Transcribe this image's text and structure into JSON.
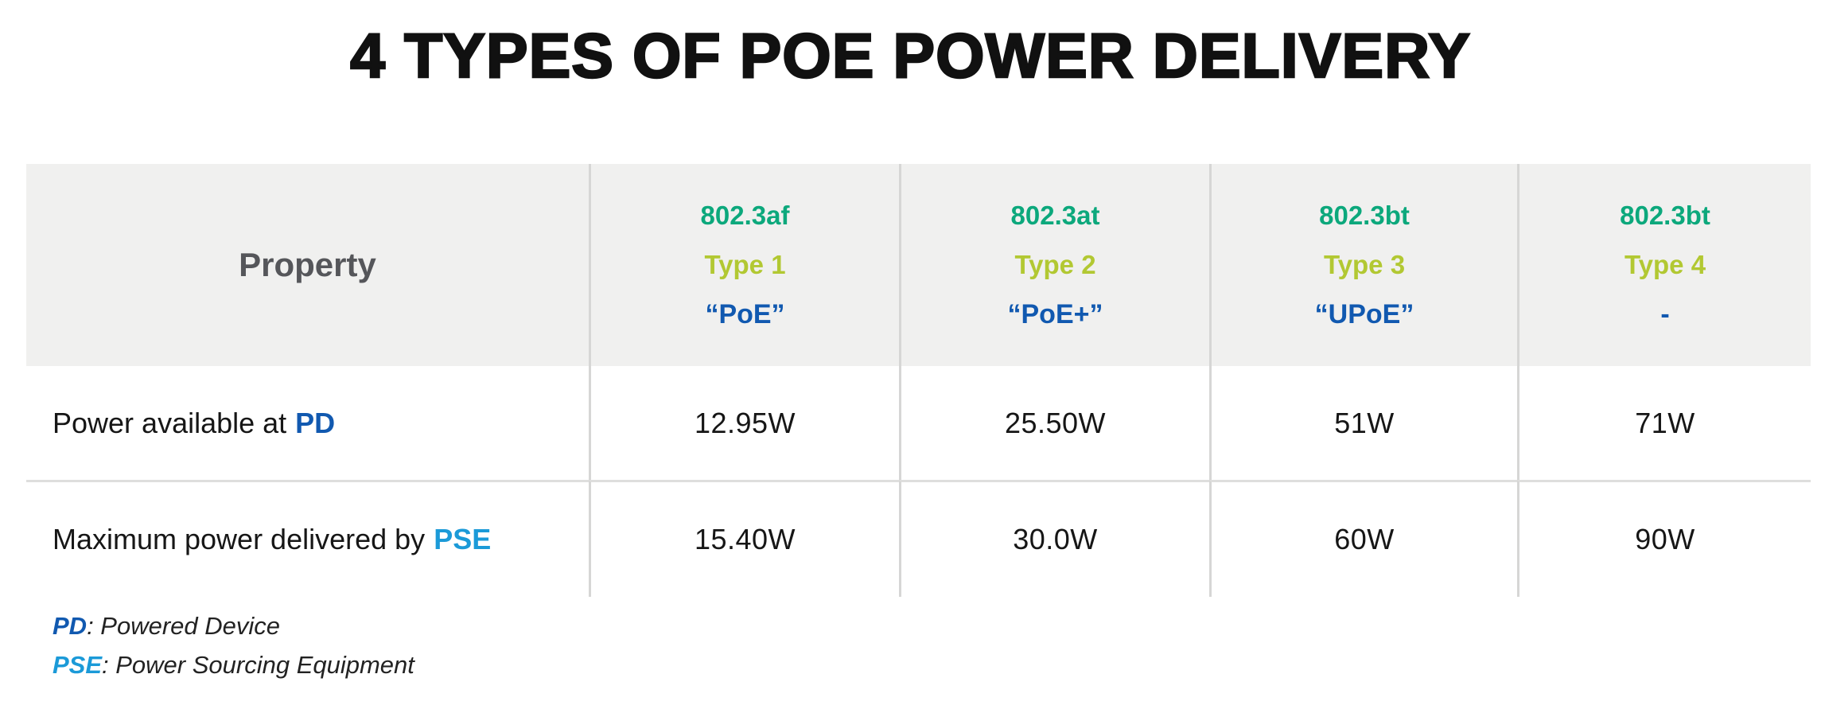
{
  "title": "4 TYPES OF POE POWER DELIVERY",
  "colors": {
    "standard_green": "#0ca87c",
    "type_lime": "#b2c832",
    "poe_blue_dark": "#1159b0",
    "pse_blue_light": "#1b9ad8",
    "header_bg": "#f0f0ef",
    "divider_gray": "#d6d6d5",
    "property_gray": "#55565a",
    "text_dark": "#161616"
  },
  "table": {
    "property_header": "Property",
    "columns": [
      {
        "standard": "802.3af",
        "type": "Type 1",
        "nickname": "“PoE”"
      },
      {
        "standard": "802.3at",
        "type": "Type 2",
        "nickname": "“PoE+”"
      },
      {
        "standard": "802.3bt",
        "type": "Type 3",
        "nickname": "“UPoE”"
      },
      {
        "standard": "802.3bt",
        "type": "Type 4",
        "nickname": "-"
      }
    ],
    "rows": [
      {
        "label": "Power available at",
        "term": "PD",
        "values": [
          "12.95W",
          "25.50W",
          "51W",
          "71W"
        ]
      },
      {
        "label": "Maximum power delivered by",
        "term": "PSE",
        "values": [
          "15.40W",
          "30.0W",
          "60W",
          "90W"
        ]
      }
    ]
  },
  "footnotes": [
    {
      "term": "PD",
      "definition": ": Powered Device"
    },
    {
      "term": "PSE",
      "definition": ": Power Sourcing Equipment"
    }
  ],
  "chart_data": {
    "type": "table",
    "title": "4 TYPES OF POE POWER DELIVERY",
    "columns": [
      "Property",
      "802.3af Type 1 “PoE”",
      "802.3at Type 2 “PoE+”",
      "802.3bt Type 3 “UPoE”",
      "802.3bt Type 4 -"
    ],
    "rows": [
      [
        "Power available at PD",
        "12.95W",
        "25.50W",
        "51W",
        "71W"
      ],
      [
        "Maximum power delivered by PSE",
        "15.40W",
        "30.0W",
        "60W",
        "90W"
      ]
    ],
    "notes": [
      "PD: Powered Device",
      "PSE: Power Sourcing Equipment"
    ],
    "layout": {
      "grid": "off",
      "header_background": "#f0f0ef"
    },
    "power_values_watts": {
      "power_available_at_pd": [
        12.95,
        25.5,
        51,
        71
      ],
      "max_power_delivered_by_pse": [
        15.4,
        30.0,
        60,
        90
      ]
    }
  }
}
